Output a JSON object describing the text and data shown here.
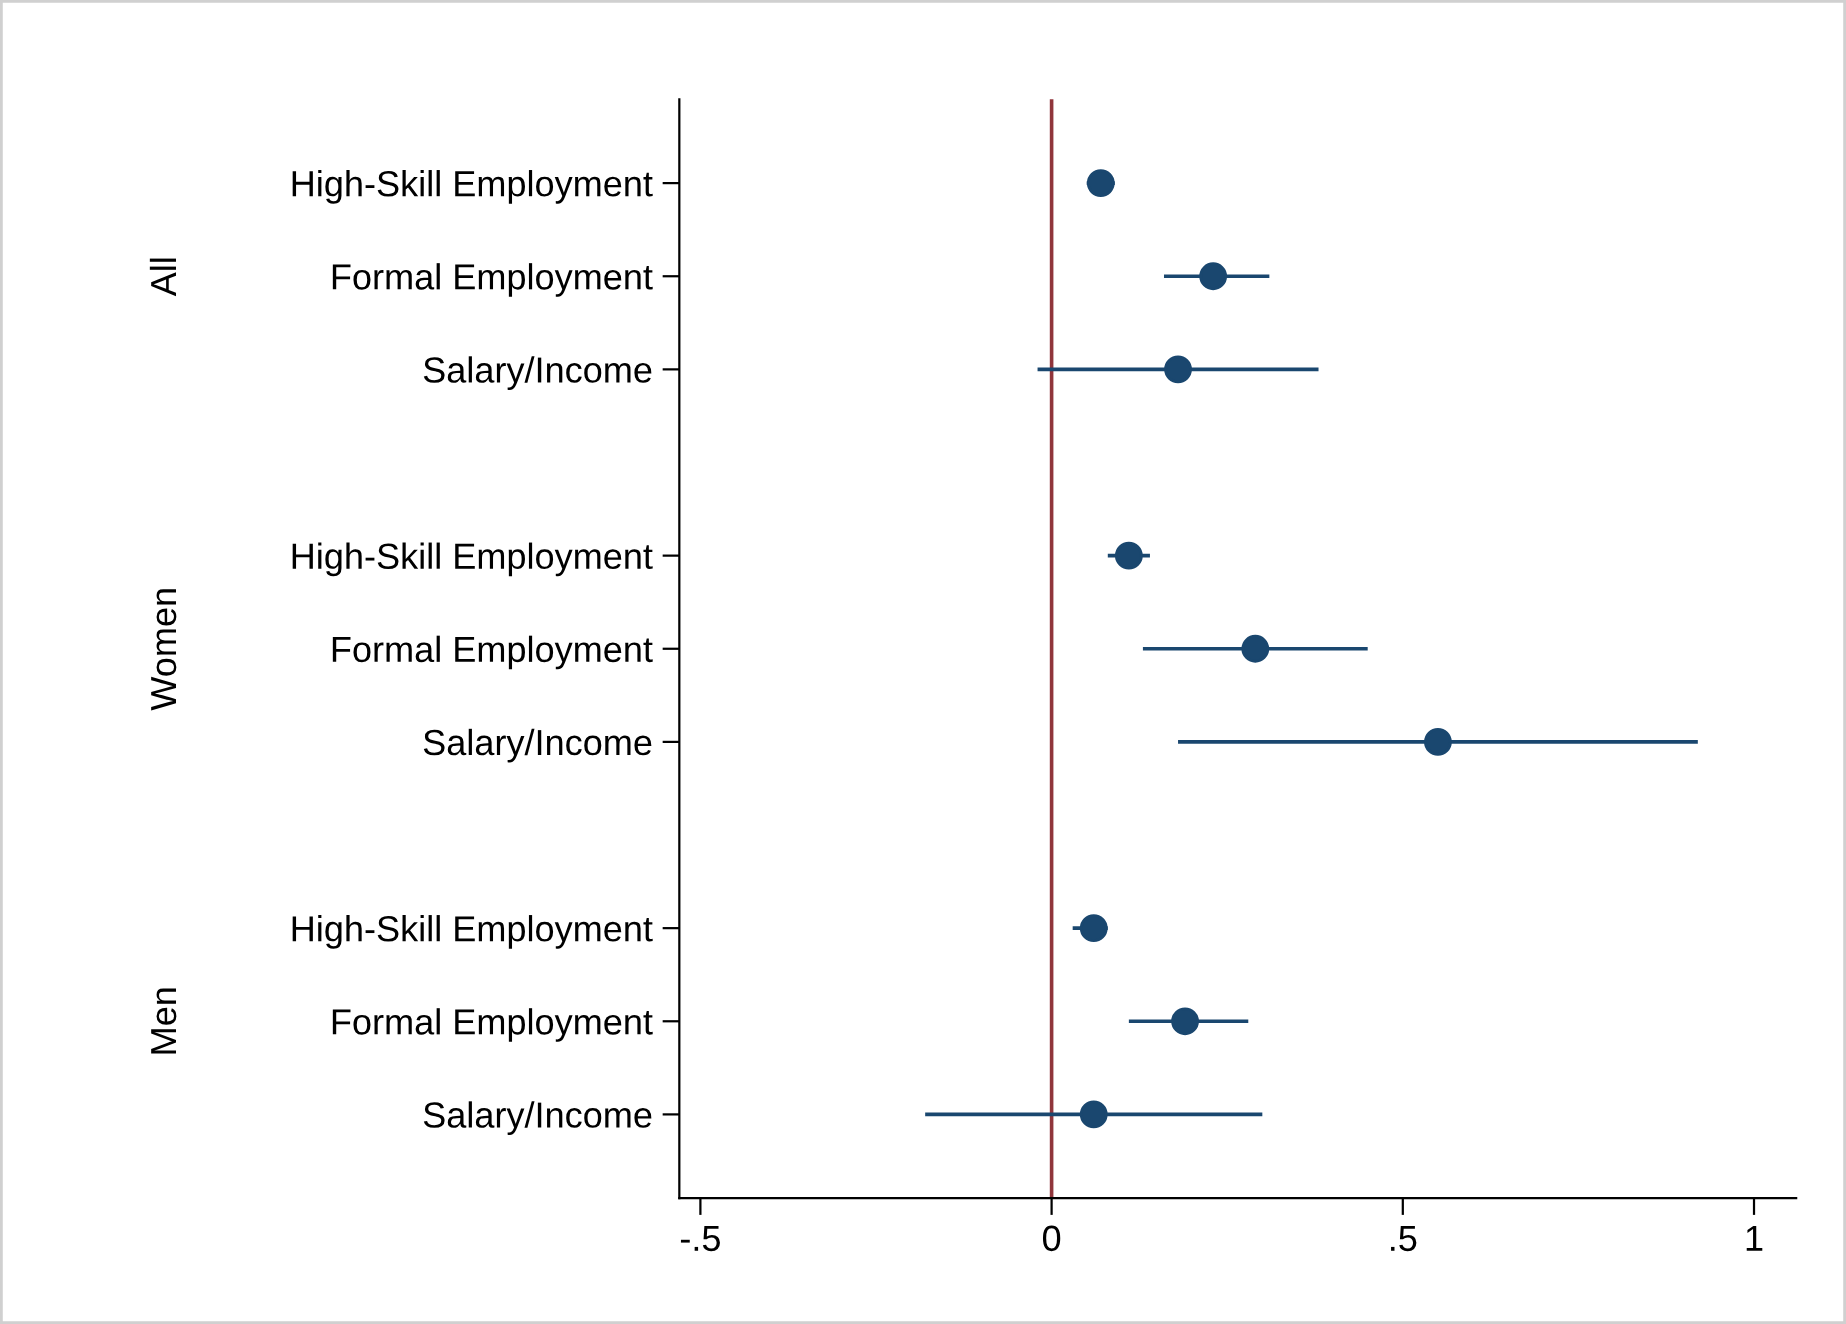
{
  "chart_data": {
    "type": "scatter",
    "orientation": "horizontal",
    "categories": [
      "High-Skill Employment",
      "Formal Employment",
      "Salary/Income",
      null,
      "High-Skill Employment",
      "Formal Employment",
      "Salary/Income",
      null,
      "High-Skill Employment",
      "Formal Employment",
      "Salary/Income"
    ],
    "color": "#1a476f",
    "values": [
      0.07,
      0.23,
      0.18,
      null,
      0.11,
      0.29,
      0.55,
      null,
      0.06,
      0.19,
      0.06
    ],
    "errors": [
      [
        0.05,
        0.09
      ],
      [
        0.16,
        0.31
      ],
      [
        -0.02,
        0.38
      ],
      null,
      [
        0.08,
        0.14
      ],
      [
        0.13,
        0.45
      ],
      [
        0.18,
        0.92
      ],
      null,
      [
        0.03,
        0.08
      ],
      [
        0.11,
        0.28
      ],
      [
        -0.18,
        0.3
      ]
    ],
    "annotations": [
      "All",
      "Women",
      "Men"
    ],
    "xlim": [
      -0.53,
      1.06
    ],
    "xticks": [
      {
        "value": -0.5,
        "label": "-.5"
      },
      0,
      {
        "value": 0.5,
        "label": ".5"
      },
      1
    ],
    "ref_lines": [
      {
        "axis": "x",
        "value": 0,
        "color": "#90353b"
      }
    ],
    "marker": "circle",
    "grid": false,
    "legend": false
  }
}
